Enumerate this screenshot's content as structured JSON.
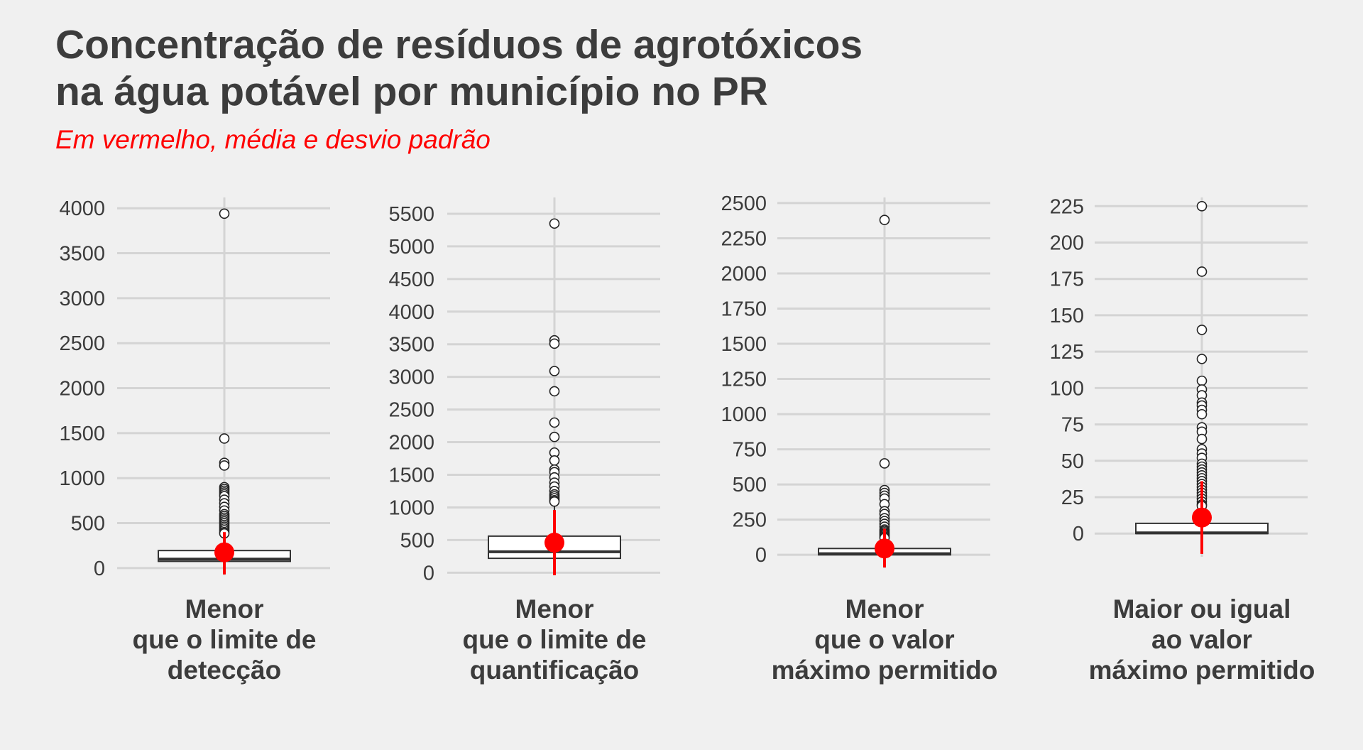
{
  "title_lines": [
    "Concentração de resíduos de agrotóxicos",
    "na água potável por município no PR"
  ],
  "subtitle": "Em vermelho, média e desvio padrão",
  "colors": {
    "background": "#f0f0f0",
    "grid": "#d4d4d4",
    "text": "#3c3c3c",
    "mean": "#ff0000",
    "box_fill": "#ffffff",
    "box_stroke": "#333333"
  },
  "chart_data": [
    {
      "type": "box",
      "category_lines": [
        "Menor",
        "que o limite de",
        "detecção"
      ],
      "yticks": [
        0,
        500,
        1000,
        1500,
        2000,
        2500,
        3000,
        3500,
        4000
      ],
      "ylim": [
        -80,
        4120
      ],
      "box": {
        "q1": 75,
        "median": 100,
        "q3": 195,
        "whisker_low": 0,
        "whisker_high": 370
      },
      "mean": 175,
      "sd_range": [
        -70,
        400
      ],
      "outliers": [
        3940,
        1440,
        1170,
        1140,
        900,
        880,
        860,
        840,
        820,
        800,
        760,
        720,
        680,
        640,
        600,
        580,
        560,
        540,
        520,
        500,
        480,
        460,
        440,
        420,
        400,
        385
      ]
    },
    {
      "type": "box",
      "category_lines": [
        "Menor",
        "que o limite de",
        "quantificação"
      ],
      "yticks": [
        0,
        500,
        1000,
        1500,
        2000,
        2500,
        3000,
        3500,
        4000,
        4500,
        5000,
        5500
      ],
      "ylim": [
        -40,
        5750
      ],
      "box": {
        "q1": 220,
        "median": 320,
        "q3": 560,
        "whisker_low": 0,
        "whisker_high": 1060
      },
      "mean": 460,
      "sd_range": [
        -40,
        960
      ],
      "outliers": [
        5350,
        3560,
        3510,
        3090,
        2780,
        2300,
        2080,
        1840,
        1720,
        1580,
        1540,
        1460,
        1380,
        1320,
        1250,
        1200,
        1170,
        1140,
        1110,
        1090
      ]
    },
    {
      "type": "box",
      "category_lines": [
        "Menor",
        "que o valor",
        "máximo permitido"
      ],
      "yticks": [
        0,
        250,
        500,
        750,
        1000,
        1250,
        1500,
        1750,
        2000,
        2250,
        2500
      ],
      "ylim": [
        -95,
        2540
      ],
      "box": {
        "q1": 0,
        "median": 8,
        "q3": 45,
        "whisker_low": 0,
        "whisker_high": 105
      },
      "mean": 45,
      "sd_range": [
        -90,
        185
      ],
      "outliers": [
        2380,
        650,
        460,
        440,
        420,
        400,
        360,
        310,
        290,
        260,
        240,
        220,
        200,
        180,
        170,
        160,
        150,
        140,
        130,
        120
      ]
    },
    {
      "type": "box",
      "category_lines": [
        "Maior ou igual",
        "ao valor",
        "máximo permitido"
      ],
      "yticks": [
        0,
        25,
        50,
        75,
        100,
        125,
        150,
        175,
        200,
        225
      ],
      "ylim": [
        -16,
        231
      ],
      "box": {
        "q1": 0,
        "median": 0.5,
        "q3": 7,
        "whisker_low": 0,
        "whisker_high": 17
      },
      "mean": 11,
      "sd_range": [
        -14,
        36
      ],
      "outliers": [
        225,
        180,
        140,
        120,
        105,
        99,
        95,
        90,
        88,
        85,
        82,
        73,
        70,
        65,
        58,
        55,
        52,
        48,
        46,
        44,
        42,
        40,
        38,
        36,
        34,
        32,
        30,
        28,
        26,
        24,
        22,
        20,
        19
      ]
    }
  ]
}
